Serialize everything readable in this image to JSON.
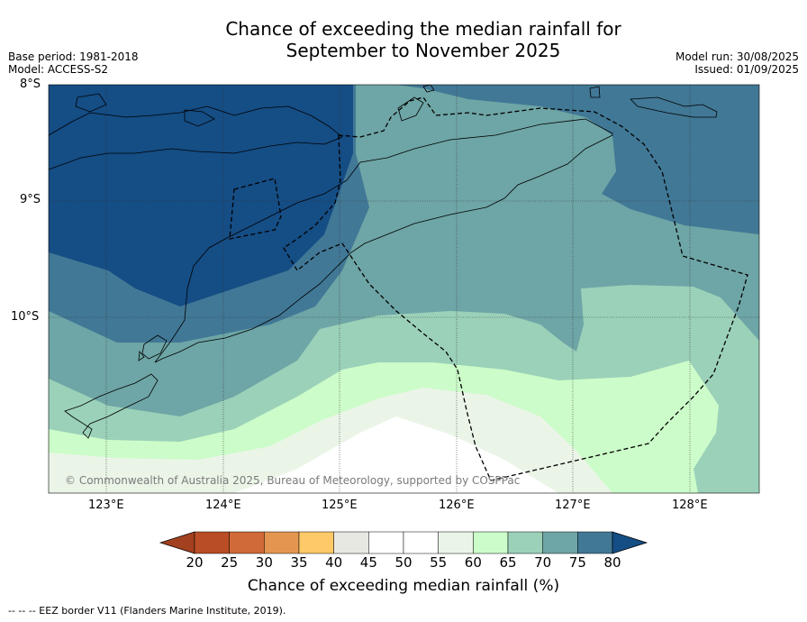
{
  "title": {
    "line1": "Chance of exceeding the median rainfall for",
    "line2": "September to November 2025"
  },
  "meta_left": {
    "base_period": "Base period: 1981-2018",
    "model": "Model: ACCESS-S2"
  },
  "meta_right": {
    "model_run": "Model run: 30/08/2025",
    "issued": "Issued: 01/09/2025"
  },
  "map": {
    "lat_labels": [
      "8°S",
      "9°S",
      "10°S"
    ],
    "lon_labels": [
      "123°E",
      "124°E",
      "125°E",
      "126°E",
      "127°E",
      "128°E"
    ],
    "copyright": "© Commonwealth of Australia 2025, Bureau of Meteorology, supported by COSPPac"
  },
  "colorbar": {
    "ticks": [
      "20",
      "25",
      "30",
      "35",
      "40",
      "45",
      "50",
      "55",
      "60",
      "65",
      "70",
      "75",
      "80"
    ],
    "colors": [
      "#a3401f",
      "#b84d26",
      "#d06a38",
      "#e49650",
      "#fdc969",
      "#e8e8e3",
      "#ffffff",
      "#ffffff",
      "#eaf5e8",
      "#ccfcc9",
      "#9bd1b9",
      "#6ea5a6",
      "#417896",
      "#154d85"
    ],
    "label": "Chance of exceeding median rainfall (%)"
  },
  "footer": "--  --  -- EEZ border V11 (Flanders Marine Institute, 2019)."
}
